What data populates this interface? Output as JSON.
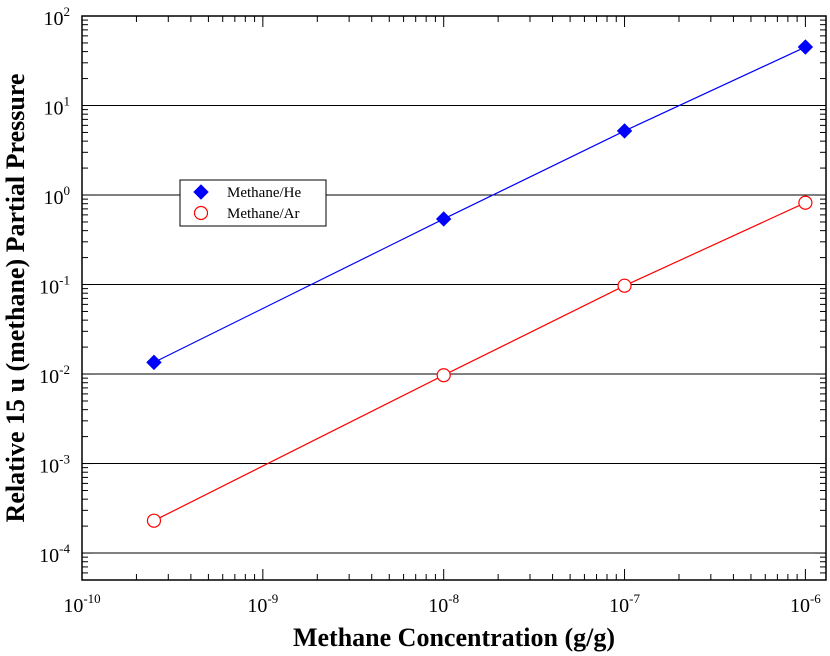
{
  "chart_data": {
    "type": "scatter",
    "title": "",
    "xlabel": "Methane Concentration (g/g)",
    "ylabel": "Relative 15 u (methane) Partial Pressure",
    "x_scale": "log",
    "y_scale": "log",
    "xlim": [
      1e-10,
      1.3e-06
    ],
    "ylim": [
      5e-05,
      100
    ],
    "x_ticks": [
      {
        "value": 1e-10,
        "base": "10",
        "exp": "-10"
      },
      {
        "value": 1e-09,
        "base": "10",
        "exp": "-9"
      },
      {
        "value": 1e-08,
        "base": "10",
        "exp": "-8"
      },
      {
        "value": 1e-07,
        "base": "10",
        "exp": "-7"
      },
      {
        "value": 1e-06,
        "base": "10",
        "exp": "-6"
      }
    ],
    "y_ticks": [
      {
        "value": 0.0001,
        "base": "10",
        "exp": "-4"
      },
      {
        "value": 0.001,
        "base": "10",
        "exp": "-3"
      },
      {
        "value": 0.01,
        "base": "10",
        "exp": "-2"
      },
      {
        "value": 0.1,
        "base": "10",
        "exp": "-1"
      },
      {
        "value": 1,
        "base": "10",
        "exp": "0"
      },
      {
        "value": 10,
        "base": "10",
        "exp": "1"
      },
      {
        "value": 100,
        "base": "10",
        "exp": "2"
      }
    ],
    "gridlines_y": [
      0.0001,
      0.001,
      0.01,
      0.1,
      1,
      10
    ],
    "legend_position": "upper-left",
    "series": [
      {
        "name": "Methane/He",
        "color": "#0000ff",
        "marker": "diamond",
        "points": [
          {
            "x": 2.5e-10,
            "y": 0.0135
          },
          {
            "x": 1e-08,
            "y": 0.54
          },
          {
            "x": 1e-07,
            "y": 5.2
          },
          {
            "x": 1e-06,
            "y": 45
          }
        ]
      },
      {
        "name": "Methane/Ar",
        "color": "#ff0000",
        "marker": "circle-open",
        "points": [
          {
            "x": 2.5e-10,
            "y": 0.00023
          },
          {
            "x": 1e-08,
            "y": 0.0097
          },
          {
            "x": 1e-07,
            "y": 0.097
          },
          {
            "x": 1e-06,
            "y": 0.82
          }
        ]
      }
    ]
  }
}
